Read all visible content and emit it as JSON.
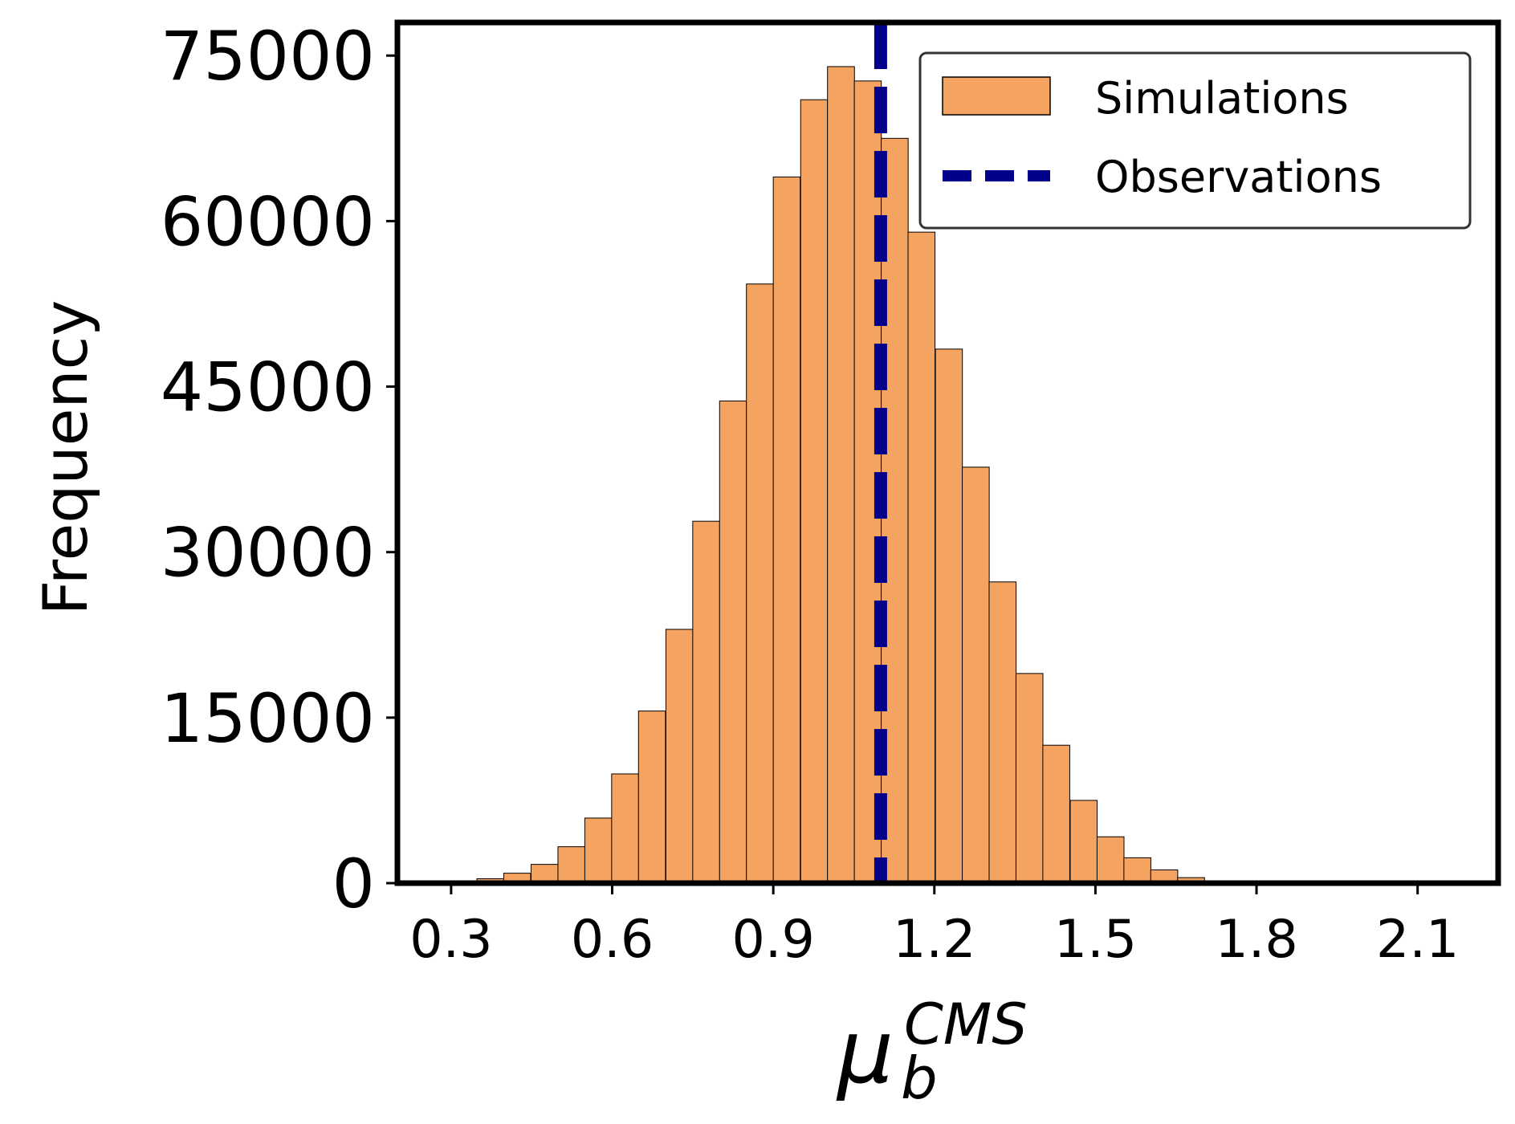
{
  "chart_data": {
    "type": "bar",
    "title": "",
    "xlabel": {
      "symbol": "μ",
      "subscript": "b",
      "superscript": "CMS"
    },
    "ylabel": "Frequency",
    "xlim": [
      0.2,
      2.25
    ],
    "ylim": [
      0,
      78000
    ],
    "xticks": [
      0.3,
      0.6,
      0.9,
      1.2,
      1.5,
      1.8,
      2.1
    ],
    "xtick_labels": [
      "0.3",
      "0.6",
      "0.9",
      "1.2",
      "1.5",
      "1.8",
      "2.1"
    ],
    "yticks": [
      0,
      15000,
      30000,
      45000,
      60000,
      75000
    ],
    "ytick_labels": [
      "0",
      "15000",
      "30000",
      "45000",
      "60000",
      "75000"
    ],
    "grid": false,
    "bin_width": 0.0502,
    "series": [
      {
        "name": "Simulations",
        "color": "#F4A460",
        "edge_color": "#000000",
        "bin_starts": [
          0.248,
          0.298,
          0.348,
          0.398,
          0.449,
          0.499,
          0.549,
          0.599,
          0.649,
          0.7,
          0.75,
          0.8,
          0.85,
          0.9,
          0.951,
          1.001,
          1.051,
          1.101,
          1.151,
          1.202,
          1.252,
          1.302,
          1.352,
          1.402,
          1.453,
          1.503,
          1.553,
          1.603,
          1.653,
          1.704,
          1.754,
          1.804,
          1.854,
          1.904,
          1.955,
          2.005,
          2.055,
          2.105,
          2.155
        ],
        "values": [
          50,
          150,
          400,
          900,
          1700,
          3300,
          5900,
          9900,
          15600,
          23000,
          32800,
          43700,
          54300,
          64000,
          71000,
          74000,
          72700,
          67500,
          59000,
          48400,
          37700,
          27300,
          19000,
          12500,
          7500,
          4200,
          2300,
          1200,
          500,
          100,
          0,
          0,
          0,
          0,
          0,
          0,
          0,
          0,
          0
        ]
      },
      {
        "name": "Observations",
        "type": "vline",
        "x": 1.1,
        "color": "#00008B",
        "style": "dashed"
      }
    ],
    "legend": {
      "position": "top-right",
      "entries": [
        "Simulations",
        "Observations"
      ]
    }
  }
}
